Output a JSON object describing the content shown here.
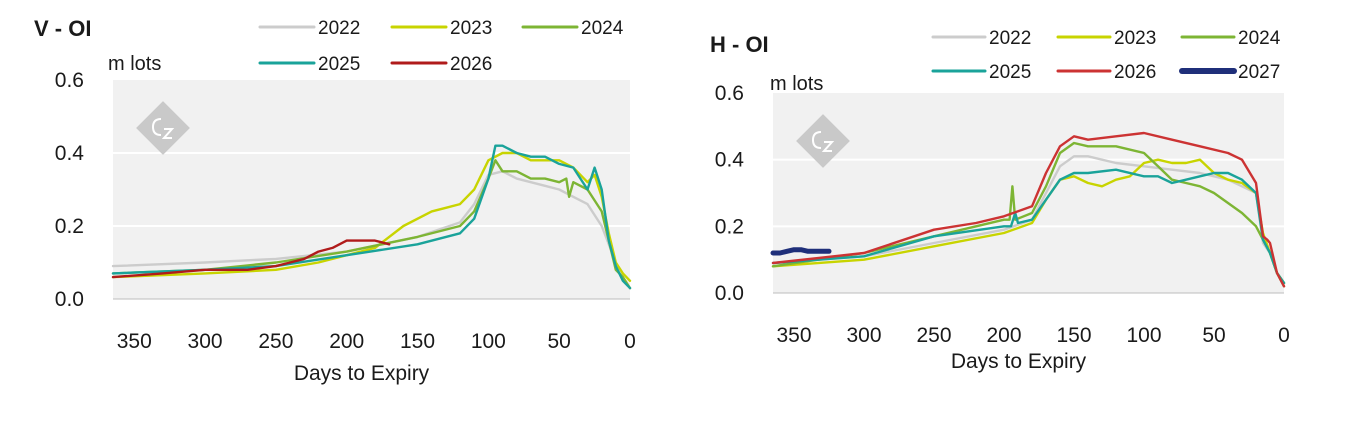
{
  "chart_data": [
    {
      "type": "line",
      "title": "V - OI",
      "ylabel": "m lots",
      "xlabel": "Days to Expiry",
      "xlim": [
        365,
        0
      ],
      "ylim": [
        0,
        0.6
      ],
      "xticks": [
        350,
        300,
        250,
        200,
        150,
        100,
        50,
        0
      ],
      "yticks": [
        "0.0",
        "0.2",
        "0.4",
        "0.6"
      ],
      "grid": "horizontal",
      "legend": "top",
      "series": [
        {
          "name": "2022",
          "color": "#cccccc",
          "x": [
            365,
            300,
            250,
            200,
            150,
            120,
            110,
            100,
            90,
            80,
            70,
            60,
            50,
            40,
            30,
            20,
            10,
            5,
            0
          ],
          "y": [
            0.09,
            0.1,
            0.11,
            0.13,
            0.17,
            0.21,
            0.26,
            0.34,
            0.35,
            0.33,
            0.32,
            0.31,
            0.3,
            0.28,
            0.26,
            0.2,
            0.1,
            0.06,
            0.03
          ]
        },
        {
          "name": "2023",
          "color": "#c8d400",
          "x": [
            365,
            300,
            250,
            220,
            200,
            180,
            160,
            140,
            130,
            120,
            110,
            100,
            90,
            80,
            70,
            60,
            50,
            40,
            30,
            25,
            20,
            15,
            10,
            5,
            0
          ],
          "y": [
            0.06,
            0.07,
            0.08,
            0.1,
            0.12,
            0.14,
            0.2,
            0.24,
            0.25,
            0.26,
            0.3,
            0.38,
            0.4,
            0.4,
            0.38,
            0.38,
            0.38,
            0.36,
            0.32,
            0.34,
            0.28,
            0.18,
            0.1,
            0.07,
            0.05
          ]
        },
        {
          "name": "2024",
          "color": "#7db534",
          "x": [
            365,
            300,
            250,
            200,
            150,
            120,
            110,
            100,
            95,
            90,
            80,
            70,
            60,
            50,
            45,
            43,
            40,
            30,
            20,
            10,
            5,
            0
          ],
          "y": [
            0.07,
            0.08,
            0.1,
            0.13,
            0.17,
            0.2,
            0.24,
            0.33,
            0.38,
            0.35,
            0.35,
            0.33,
            0.33,
            0.32,
            0.33,
            0.28,
            0.32,
            0.3,
            0.24,
            0.08,
            0.06,
            0.03
          ]
        },
        {
          "name": "2025",
          "color": "#1aa39a",
          "x": [
            365,
            300,
            250,
            200,
            150,
            120,
            110,
            100,
            95,
            90,
            80,
            70,
            60,
            50,
            40,
            30,
            25,
            20,
            15,
            10,
            5,
            0
          ],
          "y": [
            0.07,
            0.08,
            0.09,
            0.12,
            0.15,
            0.18,
            0.22,
            0.33,
            0.42,
            0.42,
            0.4,
            0.39,
            0.39,
            0.37,
            0.36,
            0.3,
            0.36,
            0.3,
            0.16,
            0.09,
            0.05,
            0.03
          ]
        },
        {
          "name": "2026",
          "color": "#b01b1b",
          "x": [
            365,
            330,
            300,
            270,
            250,
            240,
            230,
            220,
            210,
            200,
            190,
            180,
            170
          ],
          "y": [
            0.06,
            0.07,
            0.08,
            0.08,
            0.09,
            0.1,
            0.11,
            0.13,
            0.14,
            0.16,
            0.16,
            0.16,
            0.15
          ]
        }
      ]
    },
    {
      "type": "line",
      "title": "H - OI",
      "ylabel": "m lots",
      "xlabel": "Days to Expiry",
      "xlim": [
        365,
        0
      ],
      "ylim": [
        0,
        0.6
      ],
      "xticks": [
        350,
        300,
        250,
        200,
        150,
        100,
        50,
        0
      ],
      "yticks": [
        "0.0",
        "0.2",
        "0.4",
        "0.6"
      ],
      "grid": "horizontal",
      "legend": "top",
      "series": [
        {
          "name": "2022",
          "color": "#cccccc",
          "x": [
            365,
            300,
            250,
            200,
            180,
            170,
            160,
            150,
            140,
            120,
            100,
            80,
            60,
            40,
            30,
            20,
            15,
            10,
            5,
            0
          ],
          "y": [
            0.09,
            0.11,
            0.15,
            0.19,
            0.22,
            0.3,
            0.38,
            0.41,
            0.41,
            0.39,
            0.38,
            0.37,
            0.36,
            0.34,
            0.32,
            0.3,
            0.15,
            0.12,
            0.06,
            0.03
          ]
        },
        {
          "name": "2023",
          "color": "#c8d400",
          "x": [
            365,
            300,
            250,
            200,
            180,
            170,
            160,
            150,
            140,
            130,
            120,
            110,
            100,
            90,
            80,
            70,
            60,
            50,
            40,
            30,
            20,
            15,
            10,
            5,
            0
          ],
          "y": [
            0.08,
            0.1,
            0.14,
            0.18,
            0.21,
            0.28,
            0.34,
            0.35,
            0.33,
            0.32,
            0.34,
            0.35,
            0.39,
            0.4,
            0.39,
            0.39,
            0.4,
            0.36,
            0.34,
            0.33,
            0.3,
            0.18,
            0.12,
            0.06,
            0.03
          ]
        },
        {
          "name": "2024",
          "color": "#7db534",
          "x": [
            365,
            300,
            250,
            200,
            196,
            194,
            192,
            180,
            170,
            160,
            150,
            140,
            120,
            100,
            90,
            80,
            70,
            60,
            50,
            40,
            30,
            20,
            15,
            10,
            5,
            0
          ],
          "y": [
            0.08,
            0.12,
            0.17,
            0.22,
            0.22,
            0.32,
            0.22,
            0.24,
            0.32,
            0.42,
            0.45,
            0.44,
            0.44,
            0.42,
            0.38,
            0.34,
            0.33,
            0.32,
            0.3,
            0.27,
            0.24,
            0.2,
            0.16,
            0.12,
            0.06,
            0.02
          ]
        },
        {
          "name": "2025",
          "color": "#1aa39a",
          "x": [
            365,
            300,
            250,
            200,
            195,
            192,
            190,
            180,
            170,
            160,
            150,
            140,
            120,
            100,
            90,
            80,
            70,
            60,
            50,
            40,
            30,
            20,
            15,
            10,
            5,
            0
          ],
          "y": [
            0.09,
            0.11,
            0.17,
            0.2,
            0.2,
            0.24,
            0.21,
            0.22,
            0.28,
            0.34,
            0.36,
            0.36,
            0.37,
            0.35,
            0.35,
            0.33,
            0.34,
            0.35,
            0.36,
            0.36,
            0.34,
            0.3,
            0.16,
            0.12,
            0.06,
            0.03
          ]
        },
        {
          "name": "2026",
          "color": "#cc3333",
          "x": [
            365,
            300,
            250,
            220,
            200,
            180,
            170,
            160,
            150,
            140,
            120,
            100,
            80,
            60,
            40,
            30,
            20,
            15,
            12,
            10,
            5,
            0
          ],
          "y": [
            0.09,
            0.12,
            0.19,
            0.21,
            0.23,
            0.26,
            0.36,
            0.44,
            0.47,
            0.46,
            0.47,
            0.48,
            0.46,
            0.44,
            0.42,
            0.4,
            0.33,
            0.17,
            0.16,
            0.15,
            0.06,
            0.02
          ]
        },
        {
          "name": "2027",
          "color": "#1f2f7a",
          "x": [
            365,
            360,
            355,
            350,
            345,
            340,
            335,
            330,
            325
          ],
          "y": [
            0.12,
            0.12,
            0.125,
            0.13,
            0.13,
            0.125,
            0.125,
            0.125,
            0.125
          ]
        }
      ]
    }
  ]
}
